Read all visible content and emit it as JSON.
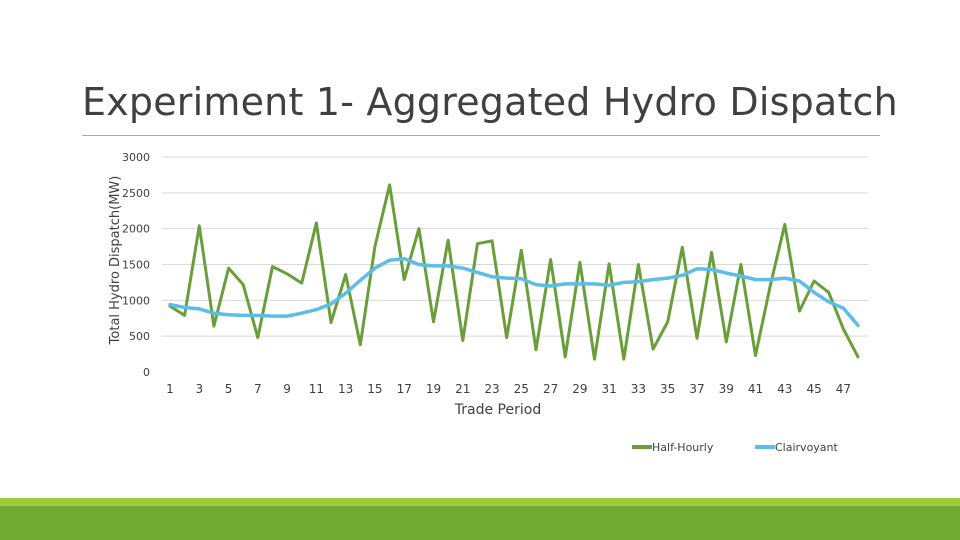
{
  "slide": {
    "title": "Experiment 1- Aggregated Hydro Dispatch"
  },
  "colors": {
    "half_hourly": "#6a9e3a",
    "clairvoyant": "#5bbde8",
    "gridline": "#d9d9d9",
    "text": "#404040",
    "footer_light": "#9ccc3c",
    "footer_dark": "#6faa33"
  },
  "chart_data": {
    "type": "line",
    "title": "",
    "xlabel": "Trade Period",
    "ylabel": "Total Hydro Dispatch(MW)",
    "ylim": [
      0,
      3000
    ],
    "yticks": [
      0,
      500,
      1000,
      1500,
      2000,
      2500,
      3000
    ],
    "xticks": [
      1,
      3,
      5,
      7,
      9,
      11,
      13,
      15,
      17,
      19,
      21,
      23,
      25,
      27,
      29,
      31,
      33,
      35,
      37,
      39,
      41,
      43,
      45,
      47
    ],
    "grid": true,
    "legend": "bottom-right",
    "x": [
      1,
      2,
      3,
      4,
      5,
      6,
      7,
      8,
      9,
      10,
      11,
      12,
      13,
      14,
      15,
      16,
      17,
      18,
      19,
      20,
      21,
      22,
      23,
      24,
      25,
      26,
      27,
      28,
      29,
      30,
      31,
      32,
      33,
      34,
      35,
      36,
      37,
      38,
      39,
      40,
      41,
      42,
      43,
      44,
      45,
      46,
      47,
      48
    ],
    "series": [
      {
        "name": "Half-Hourly",
        "values": [
          920,
          790,
          2040,
          640,
          1450,
          1220,
          480,
          1470,
          1370,
          1240,
          2080,
          690,
          1360,
          380,
          1750,
          2610,
          1290,
          2000,
          700,
          1840,
          440,
          1790,
          1830,
          480,
          1700,
          310,
          1570,
          210,
          1530,
          180,
          1510,
          180,
          1500,
          320,
          700,
          1740,
          470,
          1670,
          420,
          1500,
          230,
          1200,
          2060,
          850,
          1270,
          1110,
          600,
          210
        ]
      },
      {
        "name": "Clairvoyant",
        "values": [
          940,
          900,
          880,
          820,
          800,
          790,
          790,
          780,
          780,
          820,
          870,
          950,
          1100,
          1280,
          1450,
          1560,
          1580,
          1500,
          1480,
          1480,
          1450,
          1390,
          1330,
          1310,
          1300,
          1220,
          1200,
          1230,
          1230,
          1230,
          1210,
          1250,
          1260,
          1290,
          1310,
          1350,
          1440,
          1430,
          1380,
          1340,
          1290,
          1290,
          1310,
          1270,
          1110,
          980,
          890,
          650
        ]
      }
    ]
  }
}
